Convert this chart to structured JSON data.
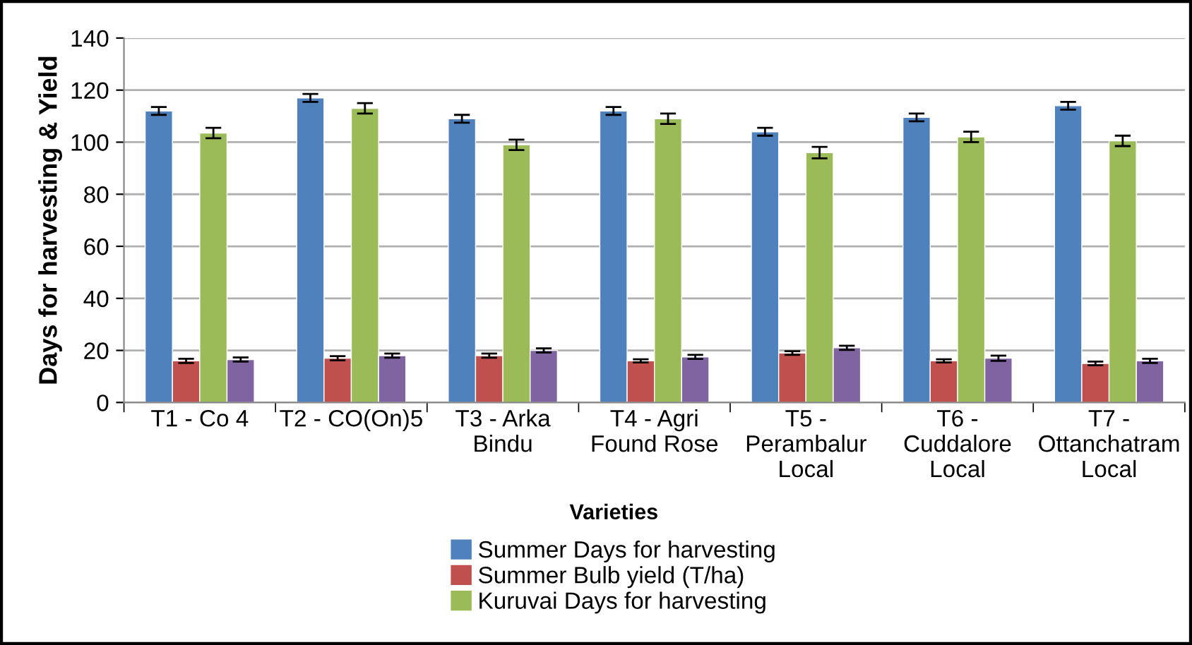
{
  "chart_data": {
    "type": "bar",
    "xlabel": "Varieties",
    "ylabel": "Days for harvesting & Yield",
    "categories": [
      "T1 - Co 4",
      "T2 - CO(On)5",
      "T3 - Arka\nBindu",
      "T4 - Agri\nFound Rose",
      "T5 -\nPerambalur\nLocal",
      "T6 -\nCuddalore\nLocal",
      "T7 -\nOttanchatram\nLocal"
    ],
    "series": [
      {
        "name": "Summer Days for harvesting",
        "color": "#4f81bd",
        "values": [
          112,
          117,
          109,
          112,
          104,
          109.5,
          114
        ],
        "errors": [
          1.5,
          1.5,
          1.5,
          1.5,
          1.5,
          1.5,
          1.5
        ]
      },
      {
        "name": "Summer Bulb yield (T/ha)",
        "color": "#c0504d",
        "values": [
          16,
          17,
          18,
          16,
          19,
          16,
          15
        ],
        "errors": [
          0.8,
          0.8,
          0.8,
          0.6,
          0.7,
          0.6,
          0.7
        ]
      },
      {
        "name": "Kuruvai Days for harvesting",
        "color": "#9bbb59",
        "values": [
          103.5,
          113,
          99,
          109,
          96,
          102,
          100.5
        ],
        "errors": [
          2,
          2,
          2,
          2,
          2.2,
          2,
          2
        ]
      },
      {
        "color": "#8064a2",
        "values": [
          16.5,
          18,
          20,
          17.5,
          21,
          17,
          16
        ],
        "errors": [
          0.8,
          0.8,
          0.8,
          0.8,
          0.8,
          1,
          0.8
        ]
      }
    ],
    "ylim": [
      0,
      140
    ],
    "yticks": [
      0,
      20,
      40,
      60,
      80,
      100,
      120,
      140
    ],
    "grid": "y",
    "legend": "bottom"
  }
}
